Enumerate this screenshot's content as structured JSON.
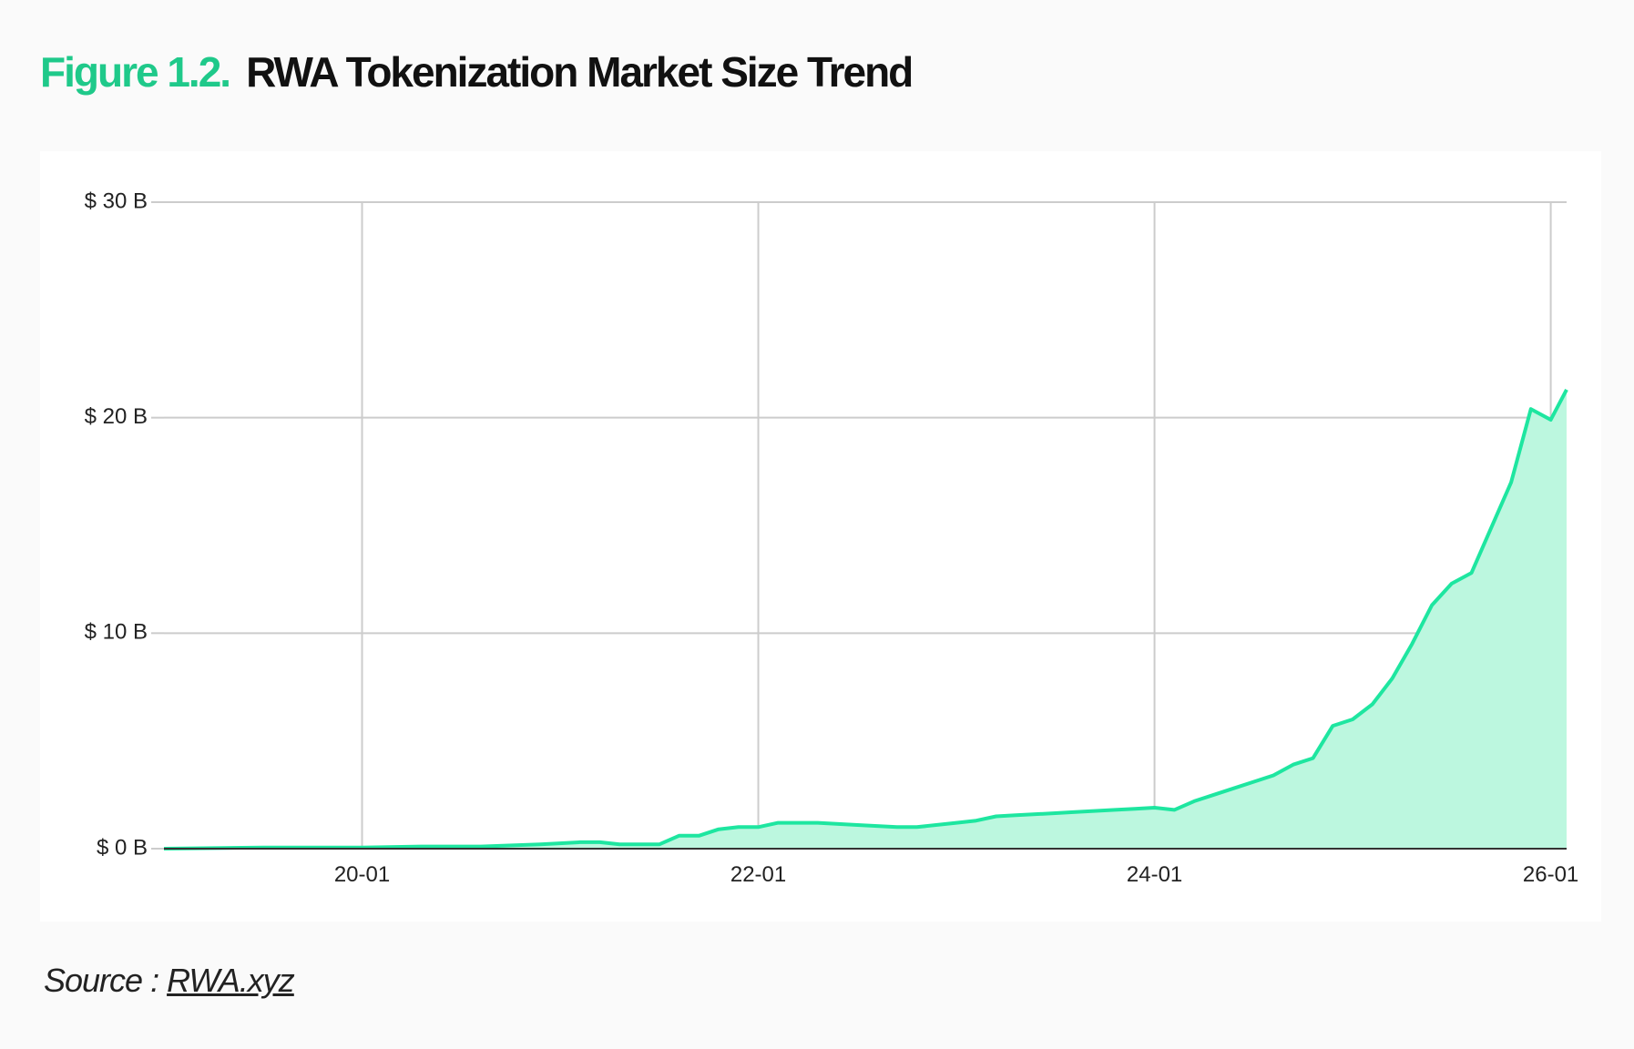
{
  "heading": {
    "figure_label": "Figure 1.2.",
    "title": "RWA Tokenization Market Size Trend"
  },
  "source": {
    "prefix": "Source : ",
    "link_text": "RWA.xyz"
  },
  "colors": {
    "accent": "#1fc98a",
    "line": "#1ee6a0",
    "area": "#bcf7df",
    "grid": "#cccccc",
    "axis": "#333333"
  },
  "chart_data": {
    "type": "area",
    "title": "RWA Tokenization Market Size Trend",
    "xlabel": "",
    "ylabel": "",
    "grid": true,
    "ylim": [
      0,
      30
    ],
    "y_unit": "$ B (billions USD)",
    "y_ticks": [
      {
        "value": 0,
        "label": "$ 0 B"
      },
      {
        "value": 10,
        "label": "$ 10 B"
      },
      {
        "value": 20,
        "label": "$ 20 B"
      },
      {
        "value": 30,
        "label": "$ 30 B"
      }
    ],
    "x_unit": "years since 2019-01 (YY-MM)",
    "xlim": [
      0.0,
      7.08
    ],
    "x_ticks": [
      {
        "value": 1,
        "label": "20-01"
      },
      {
        "value": 3,
        "label": "22-01"
      },
      {
        "value": 5,
        "label": "24-01"
      },
      {
        "value": 7,
        "label": "26-01"
      }
    ],
    "series": [
      {
        "name": "RWA Tokenization Market Size",
        "x": [
          0.0,
          0.5,
          1.0,
          1.3,
          1.6,
          1.9,
          2.1,
          2.2,
          2.3,
          2.5,
          2.6,
          2.7,
          2.8,
          2.9,
          3.0,
          3.1,
          3.2,
          3.3,
          3.5,
          3.7,
          3.8,
          4.0,
          4.1,
          4.2,
          4.3,
          4.5,
          4.6,
          4.8,
          4.9,
          5.0,
          5.1,
          5.2,
          5.3,
          5.4,
          5.5,
          5.6,
          5.7,
          5.8,
          5.9,
          6.0,
          6.1,
          6.2,
          6.3,
          6.4,
          6.5,
          6.6,
          6.7,
          6.8,
          6.9,
          7.0,
          7.08
        ],
        "values": [
          0.0,
          0.05,
          0.05,
          0.1,
          0.1,
          0.2,
          0.3,
          0.3,
          0.2,
          0.2,
          0.6,
          0.6,
          0.9,
          1.0,
          1.0,
          1.2,
          1.2,
          1.2,
          1.1,
          1.0,
          1.0,
          1.2,
          1.3,
          1.5,
          1.55,
          1.65,
          1.7,
          1.8,
          1.85,
          1.9,
          1.8,
          2.2,
          2.5,
          2.8,
          3.1,
          3.4,
          3.9,
          4.2,
          5.7,
          6.0,
          6.7,
          7.9,
          9.5,
          11.3,
          12.3,
          12.8,
          14.9,
          17.0,
          20.4,
          19.9,
          21.3
        ]
      }
    ]
  }
}
